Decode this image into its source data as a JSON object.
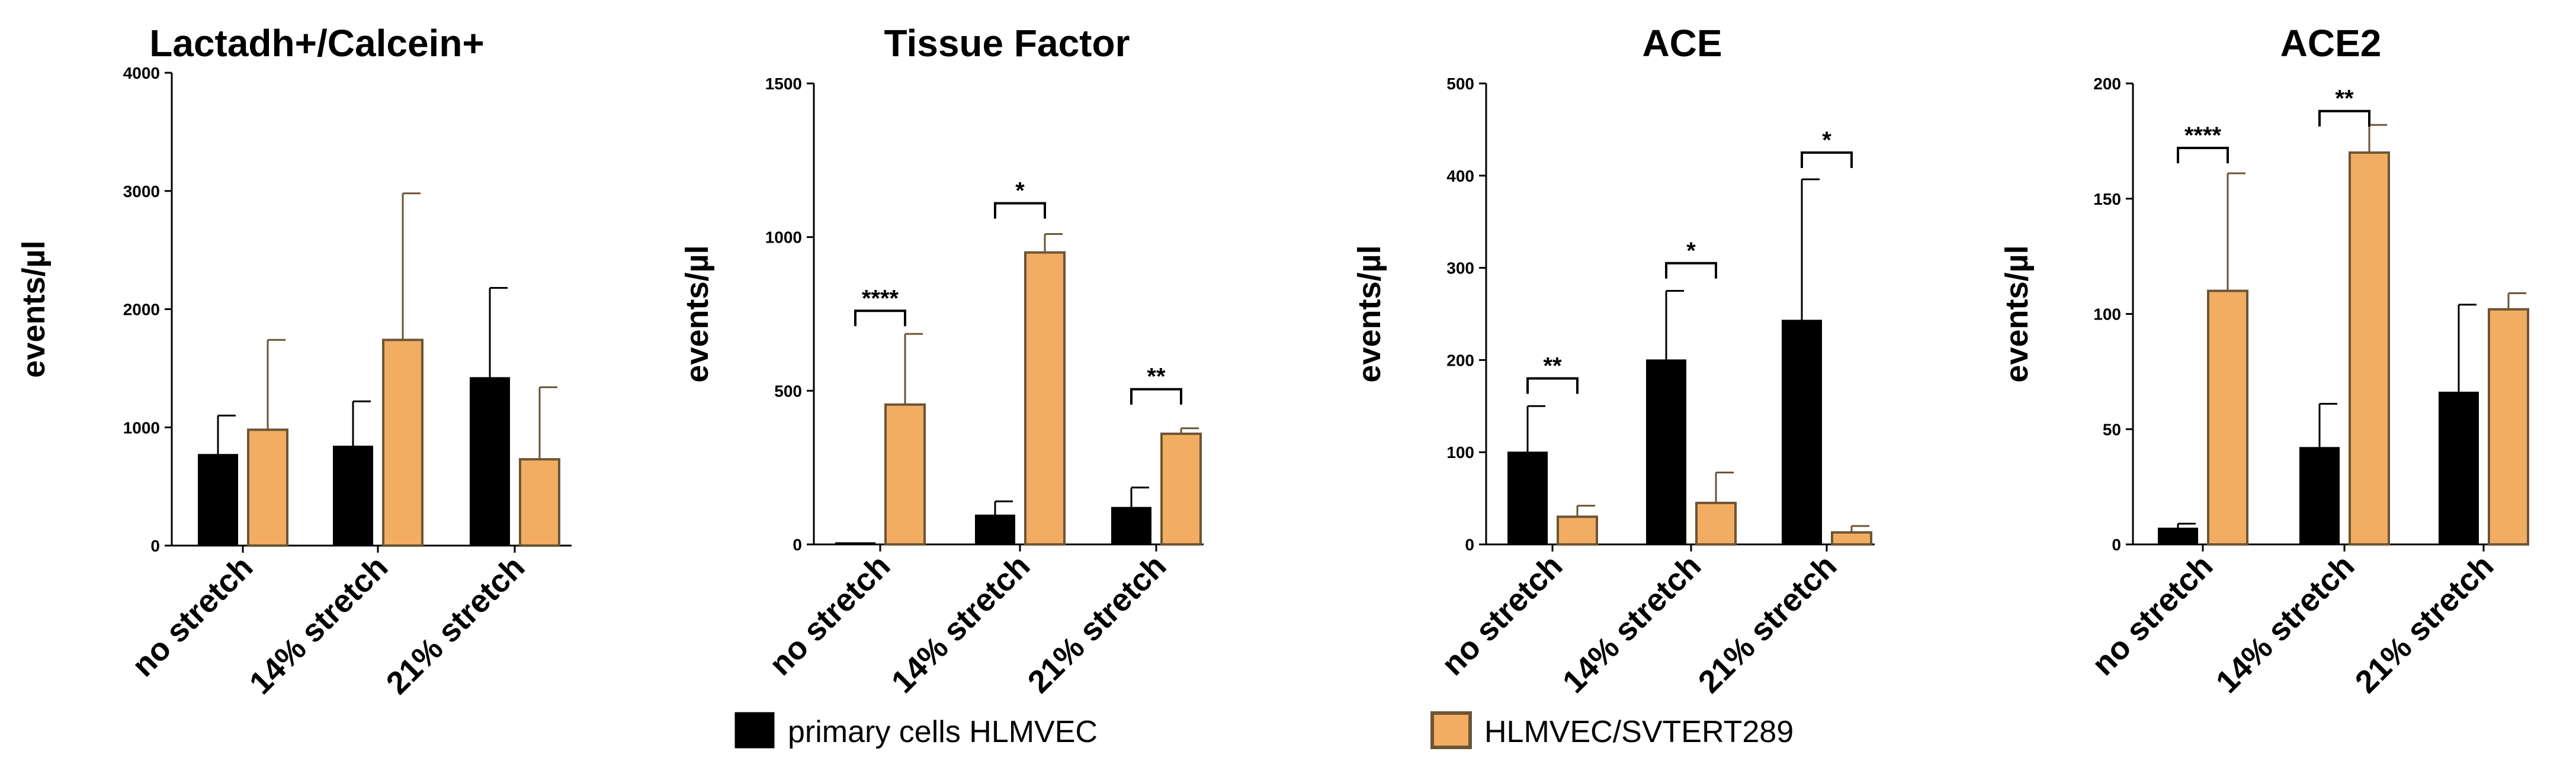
{
  "legend": {
    "items": [
      {
        "label": "primary cells HLMVEC",
        "color": "#000000"
      },
      {
        "label": "HLMVEC/SVTERT289",
        "color": "#F2AD62"
      }
    ],
    "placement": "bottom-center"
  },
  "chart_data": [
    {
      "type": "bar",
      "title": "Lactadh+/Calcein+",
      "ylabel": "events/µl",
      "xlabel": "",
      "categories": [
        "no stretch",
        "14% stretch",
        "21% stretch"
      ],
      "ylim": [
        0,
        4000
      ],
      "yticks": [
        0,
        1000,
        2000,
        3000,
        4000
      ],
      "series": [
        {
          "name": "primary cells HLMVEC",
          "color": "#000000",
          "values": [
            770,
            840,
            1420
          ],
          "errors": [
            330,
            380,
            760
          ]
        },
        {
          "name": "HLMVEC/SVTERT289",
          "color": "#F2AD62",
          "values": [
            980,
            1740,
            730
          ],
          "errors": [
            760,
            1240,
            610
          ]
        }
      ],
      "significance": []
    },
    {
      "type": "bar",
      "title": "Tissue Factor",
      "ylabel": "events/µl",
      "xlabel": "",
      "categories": [
        "no stretch",
        "14% stretch",
        "21% stretch"
      ],
      "ylim": [
        0,
        1500
      ],
      "yticks": [
        0,
        500,
        1000,
        1500
      ],
      "series": [
        {
          "name": "primary cells HLMVEC",
          "color": "#000000",
          "values": [
            5,
            95,
            120
          ],
          "errors": [
            0,
            45,
            65
          ]
        },
        {
          "name": "HLMVEC/SVTERT289",
          "color": "#F2AD62",
          "values": [
            455,
            950,
            360
          ],
          "errors": [
            230,
            60,
            18
          ]
        }
      ],
      "significance": [
        {
          "category": 0,
          "label": "****",
          "y": 760
        },
        {
          "category": 1,
          "label": "*",
          "y": 1110
        },
        {
          "category": 2,
          "label": "**",
          "y": 505
        }
      ]
    },
    {
      "type": "bar",
      "title": "ACE",
      "ylabel": "events/µl",
      "xlabel": "",
      "categories": [
        "no stretch",
        "14% stretch",
        "21% stretch"
      ],
      "ylim": [
        0,
        500
      ],
      "yticks": [
        0,
        100,
        200,
        300,
        400,
        500
      ],
      "series": [
        {
          "name": "primary cells HLMVEC",
          "color": "#000000",
          "values": [
            100,
            200,
            243
          ],
          "errors": [
            50,
            75,
            153
          ]
        },
        {
          "name": "HLMVEC/SVTERT289",
          "color": "#F2AD62",
          "values": [
            30,
            45,
            13
          ],
          "errors": [
            12,
            33,
            7
          ]
        }
      ],
      "significance": [
        {
          "category": 0,
          "label": "**",
          "y": 180
        },
        {
          "category": 1,
          "label": "*",
          "y": 305
        },
        {
          "category": 2,
          "label": "*",
          "y": 425
        }
      ]
    },
    {
      "type": "bar",
      "title": "ACE2",
      "ylabel": "events/µl",
      "xlabel": "",
      "categories": [
        "no stretch",
        "14% stretch",
        "21% stretch"
      ],
      "ylim": [
        0,
        200
      ],
      "yticks": [
        0,
        50,
        100,
        150,
        200
      ],
      "series": [
        {
          "name": "primary cells HLMVEC",
          "color": "#000000",
          "values": [
            7,
            42,
            66
          ],
          "errors": [
            2,
            19,
            38
          ]
        },
        {
          "name": "HLMVEC/SVTERT289",
          "color": "#F2AD62",
          "values": [
            110,
            170,
            102
          ],
          "errors": [
            51,
            12,
            7
          ]
        }
      ],
      "significance": [
        {
          "category": 0,
          "label": "****",
          "y": 172
        },
        {
          "category": 1,
          "label": "**",
          "y": 188
        }
      ]
    }
  ]
}
